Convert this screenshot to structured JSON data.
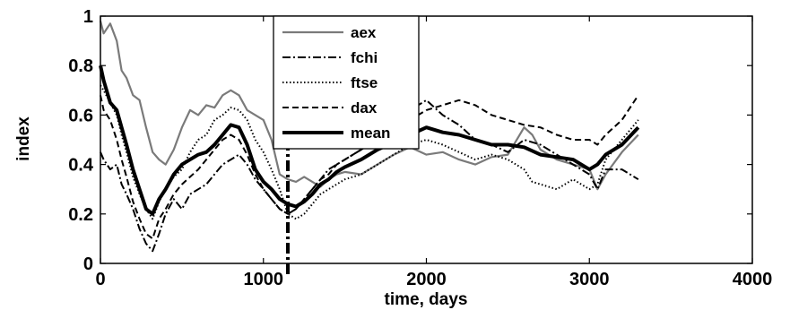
{
  "chart_data": {
    "type": "line",
    "xlabel": "time, days",
    "ylabel": "index",
    "xlim": [
      0,
      4000
    ],
    "ylim": [
      0,
      1
    ],
    "xticks": [
      "0",
      "1000",
      "2000",
      "3000",
      "4000"
    ],
    "yticks": [
      "0",
      "0.2",
      "0.4",
      "0.6",
      "0.8",
      "1"
    ],
    "grid": false,
    "legend_position": "top-center",
    "vertical_marker_x": 1150,
    "series": [
      {
        "name": "aex",
        "style": "solid",
        "color": "#7a7a7a",
        "x": [
          0,
          20,
          60,
          100,
          130,
          160,
          200,
          240,
          280,
          320,
          360,
          400,
          450,
          500,
          550,
          600,
          650,
          700,
          750,
          800,
          850,
          900,
          950,
          1000,
          1050,
          1100,
          1150,
          1200,
          1250,
          1300,
          1350,
          1400,
          1450,
          1500,
          1600,
          1700,
          1800,
          1900,
          2000,
          2100,
          2200,
          2300,
          2400,
          2500,
          2600,
          2650,
          2700,
          2800,
          2900,
          3000,
          3050,
          3100,
          3200,
          3300
        ],
        "y": [
          0.98,
          0.93,
          0.97,
          0.9,
          0.78,
          0.75,
          0.68,
          0.66,
          0.55,
          0.45,
          0.42,
          0.4,
          0.46,
          0.55,
          0.62,
          0.6,
          0.64,
          0.63,
          0.68,
          0.7,
          0.68,
          0.62,
          0.6,
          0.58,
          0.5,
          0.36,
          0.34,
          0.33,
          0.35,
          0.33,
          0.31,
          0.34,
          0.36,
          0.37,
          0.36,
          0.4,
          0.44,
          0.47,
          0.44,
          0.45,
          0.42,
          0.4,
          0.43,
          0.44,
          0.55,
          0.52,
          0.46,
          0.42,
          0.4,
          0.38,
          0.3,
          0.36,
          0.45,
          0.52
        ]
      },
      {
        "name": "fchi",
        "style": "dashdot",
        "color": "#000000",
        "x": [
          0,
          20,
          60,
          100,
          130,
          160,
          200,
          240,
          280,
          320,
          360,
          400,
          450,
          500,
          550,
          600,
          650,
          700,
          750,
          800,
          850,
          900,
          950,
          1000,
          1050,
          1100,
          1150,
          1200,
          1250,
          1300,
          1350,
          1400,
          1450,
          1500,
          1600,
          1700,
          1800,
          1900,
          2000,
          2100,
          2200,
          2300,
          2400,
          2500,
          2600,
          2700,
          2800,
          2900,
          3000,
          3050,
          3100,
          3200,
          3300
        ],
        "y": [
          0.45,
          0.42,
          0.38,
          0.4,
          0.32,
          0.28,
          0.22,
          0.14,
          0.08,
          0.05,
          0.12,
          0.2,
          0.26,
          0.22,
          0.28,
          0.3,
          0.32,
          0.36,
          0.4,
          0.42,
          0.44,
          0.4,
          0.34,
          0.3,
          0.26,
          0.22,
          0.2,
          0.22,
          0.26,
          0.3,
          0.34,
          0.38,
          0.4,
          0.42,
          0.46,
          0.5,
          0.56,
          0.62,
          0.66,
          0.6,
          0.56,
          0.5,
          0.48,
          0.45,
          0.5,
          0.48,
          0.44,
          0.4,
          0.36,
          0.3,
          0.38,
          0.38,
          0.34
        ]
      },
      {
        "name": "ftse",
        "style": "dotted",
        "color": "#000000",
        "x": [
          0,
          20,
          60,
          100,
          130,
          160,
          200,
          240,
          280,
          320,
          360,
          400,
          450,
          500,
          550,
          600,
          650,
          700,
          750,
          800,
          850,
          900,
          950,
          1000,
          1050,
          1100,
          1150,
          1200,
          1250,
          1300,
          1350,
          1400,
          1450,
          1500,
          1600,
          1700,
          1800,
          1900,
          2000,
          2100,
          2200,
          2300,
          2400,
          2500,
          2600,
          2650,
          2700,
          2800,
          2900,
          3000,
          3050,
          3100,
          3200,
          3300
        ],
        "y": [
          0.72,
          0.7,
          0.65,
          0.6,
          0.52,
          0.45,
          0.35,
          0.28,
          0.22,
          0.18,
          0.25,
          0.3,
          0.35,
          0.38,
          0.45,
          0.5,
          0.52,
          0.58,
          0.6,
          0.63,
          0.62,
          0.58,
          0.5,
          0.45,
          0.38,
          0.3,
          0.2,
          0.18,
          0.2,
          0.24,
          0.28,
          0.3,
          0.32,
          0.34,
          0.36,
          0.4,
          0.44,
          0.48,
          0.5,
          0.48,
          0.45,
          0.42,
          0.44,
          0.42,
          0.38,
          0.33,
          0.32,
          0.3,
          0.34,
          0.3,
          0.32,
          0.42,
          0.5,
          0.58
        ]
      },
      {
        "name": "dax",
        "style": "dashed",
        "color": "#000000",
        "x": [
          0,
          20,
          60,
          100,
          130,
          160,
          200,
          240,
          280,
          320,
          360,
          400,
          450,
          500,
          550,
          600,
          650,
          700,
          750,
          800,
          850,
          900,
          950,
          1000,
          1050,
          1100,
          1150,
          1200,
          1250,
          1300,
          1350,
          1400,
          1450,
          1500,
          1600,
          1700,
          1800,
          1900,
          2000,
          2100,
          2200,
          2300,
          2400,
          2500,
          2600,
          2700,
          2800,
          2900,
          3000,
          3050,
          3100,
          3200,
          3300
        ],
        "y": [
          0.68,
          0.62,
          0.58,
          0.5,
          0.42,
          0.35,
          0.25,
          0.18,
          0.12,
          0.1,
          0.18,
          0.22,
          0.28,
          0.32,
          0.35,
          0.38,
          0.42,
          0.46,
          0.5,
          0.52,
          0.5,
          0.44,
          0.36,
          0.3,
          0.26,
          0.22,
          0.2,
          0.22,
          0.26,
          0.3,
          0.34,
          0.36,
          0.4,
          0.42,
          0.46,
          0.5,
          0.54,
          0.58,
          0.62,
          0.64,
          0.66,
          0.64,
          0.6,
          0.58,
          0.56,
          0.55,
          0.52,
          0.5,
          0.5,
          0.48,
          0.52,
          0.58,
          0.68
        ]
      },
      {
        "name": "mean",
        "style": "solid-thick",
        "color": "#000000",
        "x": [
          0,
          20,
          60,
          100,
          130,
          160,
          200,
          240,
          280,
          320,
          360,
          400,
          450,
          500,
          550,
          600,
          650,
          700,
          750,
          800,
          850,
          900,
          950,
          1000,
          1050,
          1100,
          1150,
          1200,
          1250,
          1300,
          1350,
          1400,
          1450,
          1500,
          1600,
          1700,
          1800,
          1900,
          2000,
          2100,
          2200,
          2300,
          2400,
          2500,
          2600,
          2700,
          2800,
          2900,
          3000,
          3050,
          3100,
          3200,
          3300
        ],
        "y": [
          0.8,
          0.74,
          0.65,
          0.62,
          0.55,
          0.48,
          0.38,
          0.3,
          0.22,
          0.2,
          0.26,
          0.3,
          0.36,
          0.4,
          0.42,
          0.44,
          0.45,
          0.48,
          0.52,
          0.56,
          0.55,
          0.48,
          0.38,
          0.33,
          0.3,
          0.26,
          0.24,
          0.23,
          0.25,
          0.28,
          0.32,
          0.34,
          0.37,
          0.39,
          0.42,
          0.46,
          0.49,
          0.52,
          0.55,
          0.53,
          0.52,
          0.5,
          0.48,
          0.48,
          0.47,
          0.44,
          0.43,
          0.42,
          0.38,
          0.4,
          0.44,
          0.48,
          0.55
        ]
      }
    ]
  }
}
